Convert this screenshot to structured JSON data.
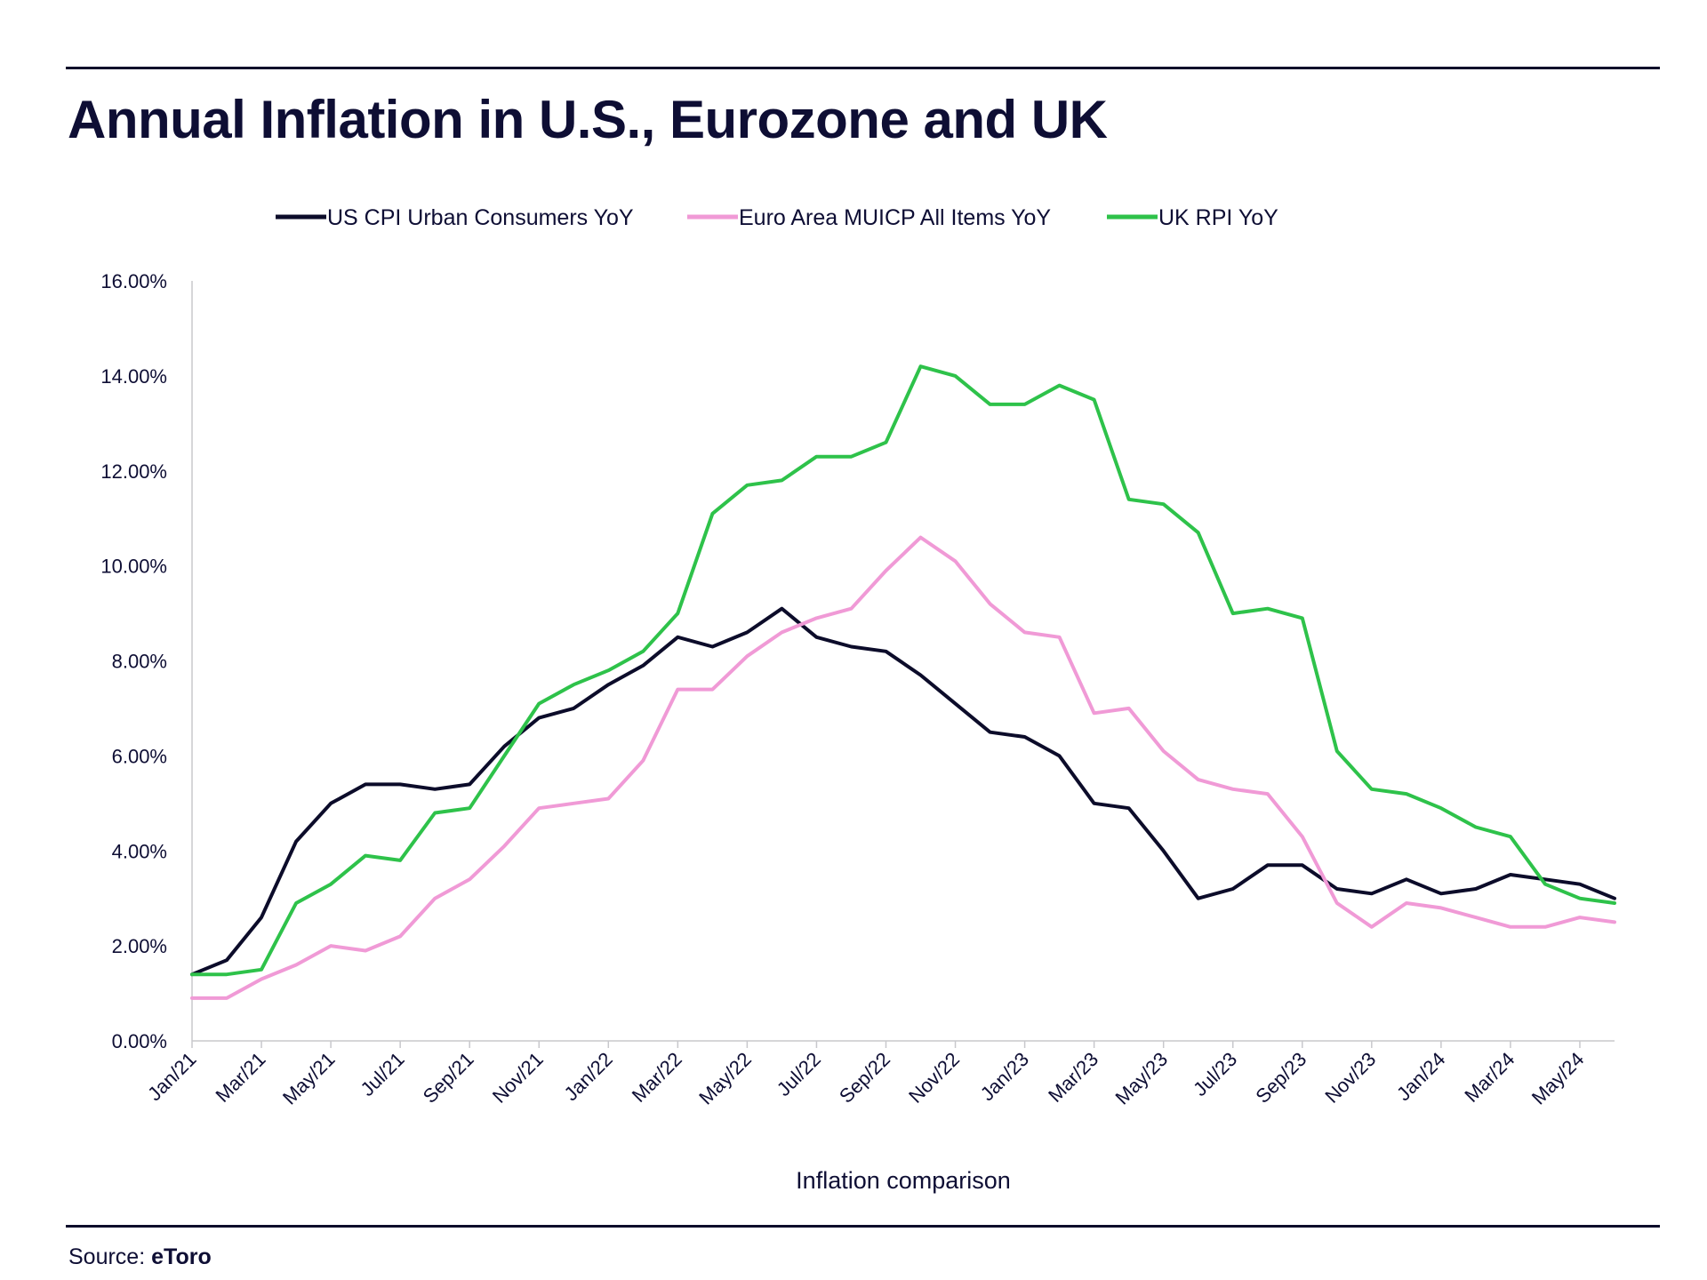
{
  "header": {
    "title": "Annual Inflation in U.S., Eurozone and UK"
  },
  "footer": {
    "source_prefix": "Source:",
    "source_name": "eToro"
  },
  "chart_data": {
    "type": "line",
    "title": "Annual Inflation in U.S., Eurozone and UK",
    "xlabel": "Inflation comparison",
    "ylabel": "",
    "ylim": [
      0,
      16
    ],
    "yticks": [
      "0.00%",
      "2.00%",
      "4.00%",
      "6.00%",
      "8.00%",
      "10.00%",
      "12.00%",
      "14.00%",
      "16.00%"
    ],
    "grid": false,
    "legend_position": "top",
    "categories": [
      "Jan/21",
      "Feb/21",
      "Mar/21",
      "Apr/21",
      "May/21",
      "Jun/21",
      "Jul/21",
      "Aug/21",
      "Sep/21",
      "Oct/21",
      "Nov/21",
      "Dec/21",
      "Jan/22",
      "Feb/22",
      "Mar/22",
      "Apr/22",
      "May/22",
      "Jun/22",
      "Jul/22",
      "Aug/22",
      "Sep/22",
      "Oct/22",
      "Nov/22",
      "Dec/22",
      "Jan/23",
      "Feb/23",
      "Mar/23",
      "Apr/23",
      "May/23",
      "Jun/23",
      "Jul/23",
      "Aug/23",
      "Sep/23",
      "Oct/23",
      "Nov/23",
      "Dec/23",
      "Jan/24",
      "Feb/24",
      "Mar/24",
      "Apr/24",
      "May/24",
      "Jun/24"
    ],
    "xtick_labels": [
      "Jan/21",
      "Mar/21",
      "May/21",
      "Jul/21",
      "Sep/21",
      "Nov/21",
      "Jan/22",
      "Mar/22",
      "May/22",
      "Jul/22",
      "Sep/22",
      "Nov/22",
      "Jan/23",
      "Mar/23",
      "May/23",
      "Jul/23",
      "Sep/23",
      "Nov/23",
      "Jan/24",
      "Mar/24",
      "May/24"
    ],
    "series": [
      {
        "name": "US CPI Urban Consumers YoY",
        "color": "#0c0c2a",
        "values": [
          1.4,
          1.7,
          2.6,
          4.2,
          5.0,
          5.4,
          5.4,
          5.3,
          5.4,
          6.2,
          6.8,
          7.0,
          7.5,
          7.9,
          8.5,
          8.3,
          8.6,
          9.1,
          8.5,
          8.3,
          8.2,
          7.7,
          7.1,
          6.5,
          6.4,
          6.0,
          5.0,
          4.9,
          4.0,
          3.0,
          3.2,
          3.7,
          3.7,
          3.2,
          3.1,
          3.4,
          3.1,
          3.2,
          3.5,
          3.4,
          3.3,
          3.0
        ]
      },
      {
        "name": "Euro Area MUICP All Items YoY",
        "color": "#f09ad6",
        "values": [
          0.9,
          0.9,
          1.3,
          1.6,
          2.0,
          1.9,
          2.2,
          3.0,
          3.4,
          4.1,
          4.9,
          5.0,
          5.1,
          5.9,
          7.4,
          7.4,
          8.1,
          8.6,
          8.9,
          9.1,
          9.9,
          10.6,
          10.1,
          9.2,
          8.6,
          8.5,
          6.9,
          7.0,
          6.1,
          5.5,
          5.3,
          5.2,
          4.3,
          2.9,
          2.4,
          2.9,
          2.8,
          2.6,
          2.4,
          2.4,
          2.6,
          2.5
        ]
      },
      {
        "name": "UK RPI YoY",
        "color": "#2ec24a",
        "values": [
          1.4,
          1.4,
          1.5,
          2.9,
          3.3,
          3.9,
          3.8,
          4.8,
          4.9,
          6.0,
          7.1,
          7.5,
          7.8,
          8.2,
          9.0,
          11.1,
          11.7,
          11.8,
          12.3,
          12.3,
          12.6,
          14.2,
          14.0,
          13.4,
          13.4,
          13.8,
          13.5,
          11.4,
          11.3,
          10.7,
          9.0,
          9.1,
          8.9,
          6.1,
          5.3,
          5.2,
          4.9,
          4.5,
          4.3,
          3.3,
          3.0,
          2.9
        ]
      }
    ]
  }
}
